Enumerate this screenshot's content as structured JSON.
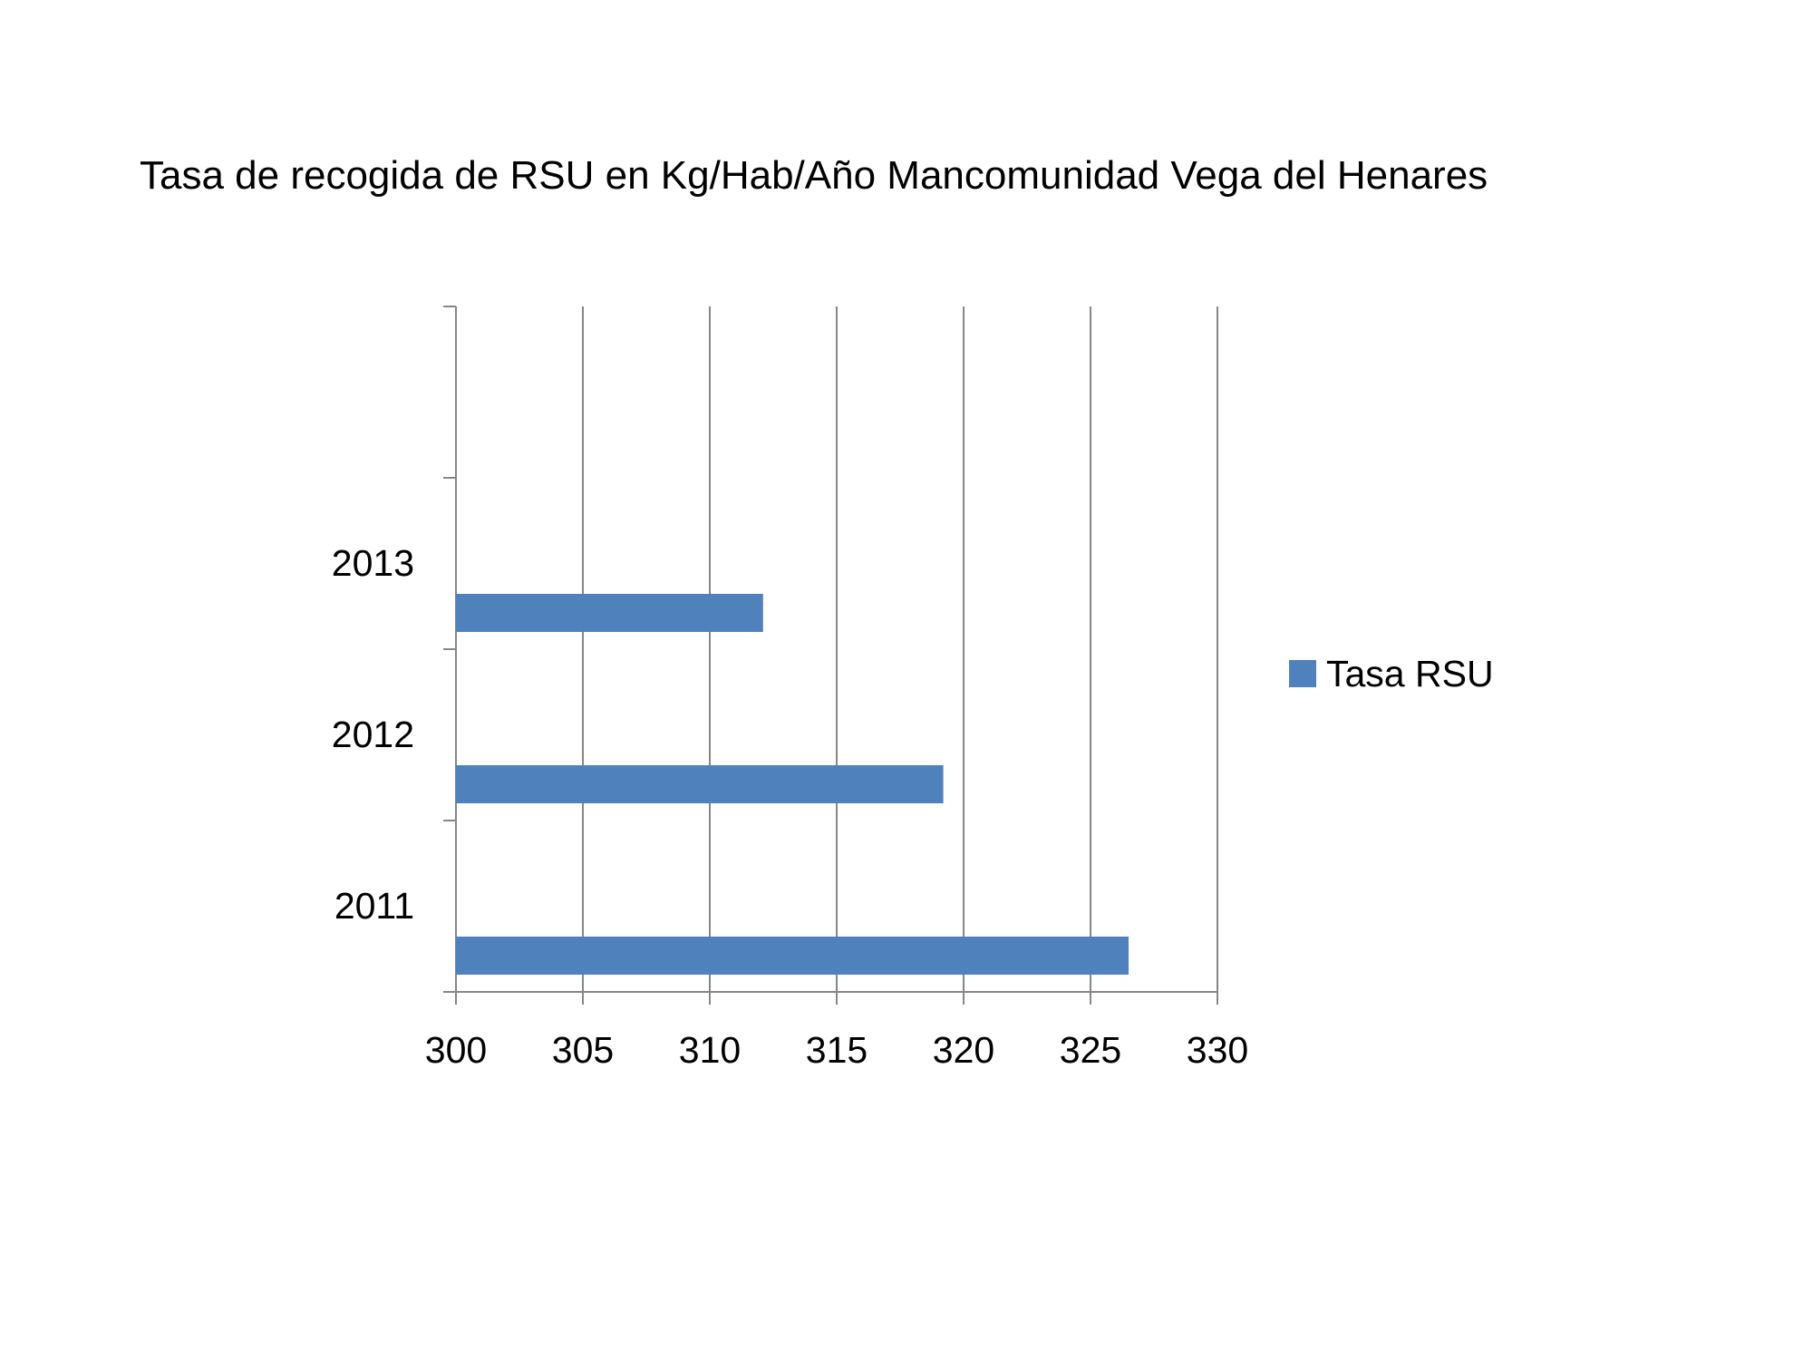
{
  "chart_data": {
    "type": "bar",
    "orientation": "horizontal",
    "title": "Tasa de recogida de RSU en Kg/Hab/Año Mancomunidad Vega del Henares",
    "xlabel": "",
    "ylabel": "",
    "categories": [
      "2011",
      "2012",
      "2013"
    ],
    "series": [
      {
        "name": "Tasa RSU",
        "values": [
          326.5,
          319.2,
          312.1
        ],
        "color": "#4f81bd"
      }
    ],
    "xlim": [
      300,
      330
    ],
    "x_ticks": [
      "300",
      "305",
      "310",
      "315",
      "320",
      "325",
      "330"
    ],
    "grid": "vertical",
    "legend_position": "right"
  }
}
